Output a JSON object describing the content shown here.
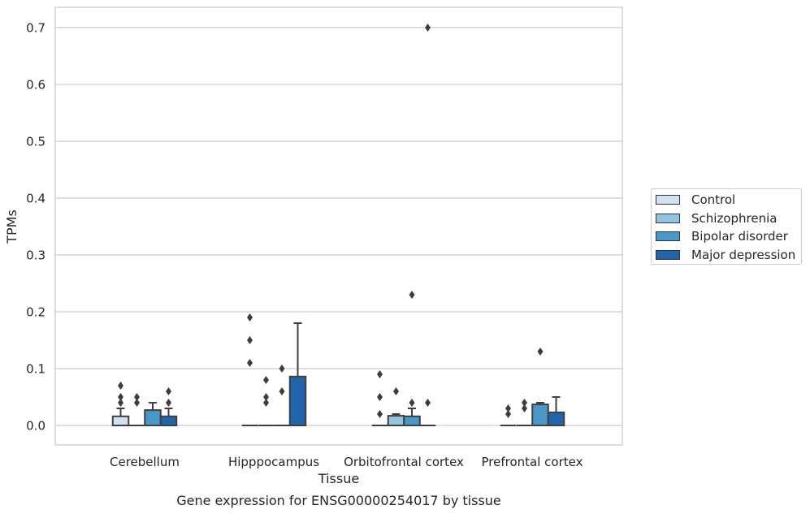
{
  "chart_data": {
    "type": "boxplot",
    "title": "Gene expression for ENSG00000254017 by tissue",
    "xlabel": "Tissue",
    "ylabel": "TPMs",
    "categories": [
      "Cerebellum",
      "Hipppocampus",
      "Orbitofrontal cortex",
      "Prefrontal cortex"
    ],
    "ylim": [
      -0.035,
      0.735
    ],
    "yticks": [
      0.0,
      0.1,
      0.2,
      0.3,
      0.4,
      0.5,
      0.6,
      0.7
    ],
    "ytick_labels": [
      "0.0",
      "0.1",
      "0.2",
      "0.3",
      "0.4",
      "0.5",
      "0.6",
      "0.7"
    ],
    "grid": "horizontal",
    "legend_position": "right",
    "series": [
      {
        "name": "Control",
        "color": "#d0e1f2",
        "boxes": [
          {
            "q1": 0.0,
            "median": 0.0,
            "q3": 0.016,
            "whisker_low": 0.0,
            "whisker_high": 0.03,
            "outliers": [
              0.04,
              0.05,
              0.07
            ]
          },
          {
            "q1": 0.0,
            "median": 0.0,
            "q3": 0.0,
            "whisker_low": 0.0,
            "whisker_high": 0.0,
            "outliers": [
              0.11,
              0.15,
              0.19
            ]
          },
          {
            "q1": 0.0,
            "median": 0.0,
            "q3": 0.0,
            "whisker_low": 0.0,
            "whisker_high": 0.0,
            "outliers": [
              0.02,
              0.05,
              0.09
            ]
          },
          {
            "q1": 0.0,
            "median": 0.0,
            "q3": 0.0,
            "whisker_low": 0.0,
            "whisker_high": 0.0,
            "outliers": [
              0.02,
              0.03
            ]
          }
        ]
      },
      {
        "name": "Schizophrenia",
        "color": "#94c4df",
        "boxes": [
          {
            "q1": 0.0,
            "median": 0.0,
            "q3": 0.0,
            "whisker_low": 0.0,
            "whisker_high": 0.0,
            "outliers": [
              0.04,
              0.05
            ]
          },
          {
            "q1": 0.0,
            "median": 0.0,
            "q3": 0.0,
            "whisker_low": 0.0,
            "whisker_high": 0.0,
            "outliers": [
              0.04,
              0.05,
              0.08
            ]
          },
          {
            "q1": 0.0,
            "median": 0.0,
            "q3": 0.017,
            "whisker_low": 0.0,
            "whisker_high": 0.02,
            "outliers": [
              0.06
            ]
          },
          {
            "q1": 0.0,
            "median": 0.0,
            "q3": 0.0,
            "whisker_low": 0.0,
            "whisker_high": 0.0,
            "outliers": [
              0.03,
              0.04
            ]
          }
        ]
      },
      {
        "name": "Bipolar disorder",
        "color": "#4a98c9",
        "boxes": [
          {
            "q1": 0.0,
            "median": 0.0,
            "q3": 0.027,
            "whisker_low": 0.0,
            "whisker_high": 0.04,
            "outliers": []
          },
          {
            "q1": 0.0,
            "median": 0.0,
            "q3": 0.0,
            "whisker_low": 0.0,
            "whisker_high": 0.0,
            "outliers": [
              0.06,
              0.1
            ]
          },
          {
            "q1": 0.0,
            "median": 0.0,
            "q3": 0.016,
            "whisker_low": 0.0,
            "whisker_high": 0.03,
            "outliers": [
              0.04,
              0.23
            ]
          },
          {
            "q1": 0.0,
            "median": 0.0,
            "q3": 0.037,
            "whisker_low": 0.0,
            "whisker_high": 0.04,
            "outliers": [
              0.13
            ]
          }
        ]
      },
      {
        "name": "Major depression",
        "color": "#2164ab",
        "boxes": [
          {
            "q1": 0.0,
            "median": 0.0,
            "q3": 0.016,
            "whisker_low": 0.0,
            "whisker_high": 0.03,
            "outliers": [
              0.04,
              0.06
            ]
          },
          {
            "q1": 0.0,
            "median": 0.0,
            "q3": 0.086,
            "whisker_low": 0.0,
            "whisker_high": 0.18,
            "outliers": []
          },
          {
            "q1": 0.0,
            "median": 0.0,
            "q3": 0.0,
            "whisker_low": 0.0,
            "whisker_high": 0.0,
            "outliers": [
              0.04,
              0.7
            ]
          },
          {
            "q1": 0.0,
            "median": 0.0,
            "q3": 0.023,
            "whisker_low": 0.0,
            "whisker_high": 0.05,
            "outliers": []
          }
        ]
      }
    ]
  }
}
